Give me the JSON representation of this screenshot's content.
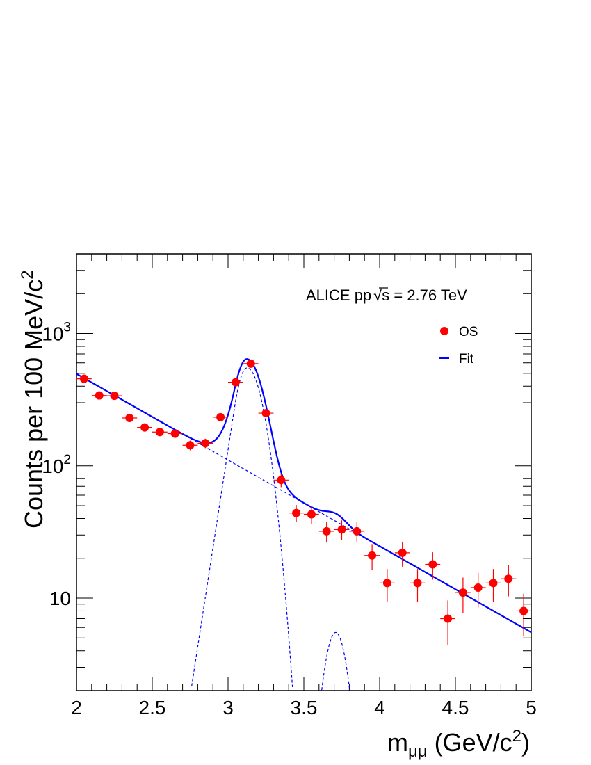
{
  "chart_data": {
    "type": "scatter",
    "log_y": true,
    "xlim": [
      2,
      5
    ],
    "ylim": [
      2,
      4000
    ],
    "grid": false,
    "legend_position": "top-right",
    "xlabel_main": "m",
    "xlabel_sub": "μμ",
    "xlabel_tail": " (GeV/c",
    "xlabel_sup": "2",
    "xlabel_close": ")",
    "ylabel_main": "Counts per 100 MeV/c",
    "ylabel_sup": "2",
    "annotation": {
      "prefix": "ALICE pp",
      "radicand": "s",
      "suffix": " = 2.76 TeV"
    },
    "x_ticks": [
      {
        "value": 2,
        "label": "2"
      },
      {
        "value": 2.5,
        "label": "2.5"
      },
      {
        "value": 3,
        "label": "3"
      },
      {
        "value": 3.5,
        "label": "3.5"
      },
      {
        "value": 4,
        "label": "4"
      },
      {
        "value": 4.5,
        "label": "4.5"
      },
      {
        "value": 5,
        "label": "5"
      }
    ],
    "y_ticks": [
      {
        "value": 10,
        "base": "10",
        "exp": ""
      },
      {
        "value": 100,
        "base": "10",
        "exp": "2"
      },
      {
        "value": 1000,
        "base": "10",
        "exp": "3"
      }
    ],
    "series": [
      {
        "name": "OS",
        "kind": "points",
        "color": "#ff0000",
        "x": [
          2.05,
          2.15,
          2.25,
          2.35,
          2.45,
          2.55,
          2.65,
          2.75,
          2.85,
          2.95,
          3.05,
          3.15,
          3.25,
          3.35,
          3.45,
          3.55,
          3.65,
          3.75,
          3.85,
          3.95,
          4.05,
          4.15,
          4.25,
          4.35,
          4.45,
          4.55,
          4.65,
          4.75,
          4.85,
          4.95
        ],
        "y": [
          455,
          340,
          338,
          230,
          195,
          180,
          175,
          143,
          148,
          233,
          428,
          592,
          250,
          78,
          44,
          43,
          32,
          33,
          32,
          21,
          13,
          22,
          13,
          18,
          7,
          11,
          12,
          13,
          14,
          8
        ],
        "y_err": [
          21,
          18,
          18,
          15,
          14,
          13,
          13,
          12,
          12,
          15,
          21,
          24,
          16,
          9,
          6.6,
          6.6,
          5.7,
          5.7,
          5.7,
          4.6,
          3.6,
          4.7,
          3.6,
          4.2,
          2.6,
          3.3,
          3.5,
          3.6,
          3.7,
          2.8
        ]
      },
      {
        "name": "Fit",
        "kind": "line",
        "color": "#0000ff"
      }
    ],
    "fit_model": {
      "background": {
        "amplitude": 460,
        "slope": 1.5,
        "origin": 2.05
      },
      "jpsi": {
        "amplitude": 550,
        "mean": 3.125,
        "sigma_left": 0.07,
        "sigma_right": 0.09,
        "tail_k": 1.2
      },
      "psi2s": {
        "amplitude": 5.5,
        "mean": 3.71,
        "sigma": 0.065
      }
    }
  }
}
